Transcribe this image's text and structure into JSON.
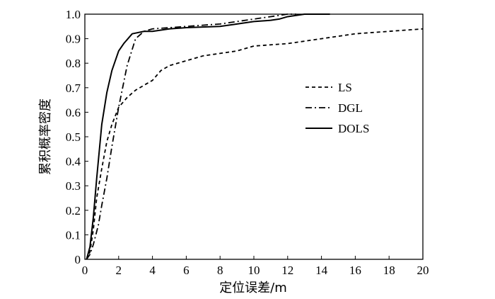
{
  "chart_data": {
    "type": "line",
    "xlabel": "定位误差/m",
    "ylabel": "累积概率密度",
    "xlim": [
      0,
      20
    ],
    "ylim": [
      0,
      1.0
    ],
    "xticks": [
      "0",
      "2",
      "4",
      "6",
      "8",
      "10",
      "12",
      "14",
      "16",
      "18",
      "20"
    ],
    "yticks": [
      "0",
      "0.1",
      "0.2",
      "0.3",
      "0.4",
      "0.5",
      "0.6",
      "0.7",
      "0.8",
      "0.9",
      "1.0"
    ],
    "grid": false,
    "legend_position": "right",
    "series": [
      {
        "name": "LS",
        "style": "dashed",
        "x": [
          0.1,
          0.3,
          0.5,
          0.7,
          1.0,
          1.3,
          1.6,
          2.0,
          2.5,
          3.0,
          3.5,
          4.0,
          4.5,
          5.0,
          6.0,
          7.0,
          8.0,
          9.0,
          10.0,
          11.0,
          12.0,
          13.0,
          14.0,
          15.0,
          16.0,
          17.0,
          18.0,
          19.0,
          20.0
        ],
        "y": [
          0.0,
          0.03,
          0.12,
          0.25,
          0.37,
          0.48,
          0.55,
          0.62,
          0.66,
          0.69,
          0.71,
          0.73,
          0.77,
          0.79,
          0.81,
          0.83,
          0.84,
          0.85,
          0.87,
          0.875,
          0.88,
          0.89,
          0.9,
          0.91,
          0.92,
          0.925,
          0.93,
          0.935,
          0.94
        ]
      },
      {
        "name": "DGL",
        "style": "dashdot",
        "x": [
          0.1,
          0.3,
          0.5,
          0.8,
          1.0,
          1.3,
          1.6,
          2.0,
          2.5,
          3.0,
          3.5,
          4.0,
          5.0,
          6.0,
          8.0,
          10.0,
          11.0,
          12.0,
          12.5
        ],
        "y": [
          0.0,
          0.02,
          0.06,
          0.14,
          0.22,
          0.33,
          0.46,
          0.62,
          0.79,
          0.9,
          0.93,
          0.94,
          0.945,
          0.95,
          0.96,
          0.98,
          0.99,
          1.0,
          1.0
        ]
      },
      {
        "name": "DOLS",
        "style": "solid",
        "x": [
          0.1,
          0.3,
          0.5,
          0.7,
          1.0,
          1.3,
          1.6,
          2.0,
          2.3,
          2.8,
          3.5,
          4.0,
          5.0,
          6.0,
          8.0,
          9.0,
          10.0,
          11.0,
          11.5,
          12.0,
          12.5,
          13.0,
          14.0,
          14.5
        ],
        "y": [
          0.0,
          0.05,
          0.17,
          0.33,
          0.55,
          0.68,
          0.77,
          0.85,
          0.88,
          0.92,
          0.93,
          0.93,
          0.94,
          0.945,
          0.95,
          0.96,
          0.97,
          0.975,
          0.98,
          0.99,
          0.995,
          1.0,
          1.0,
          1.0
        ]
      }
    ]
  }
}
